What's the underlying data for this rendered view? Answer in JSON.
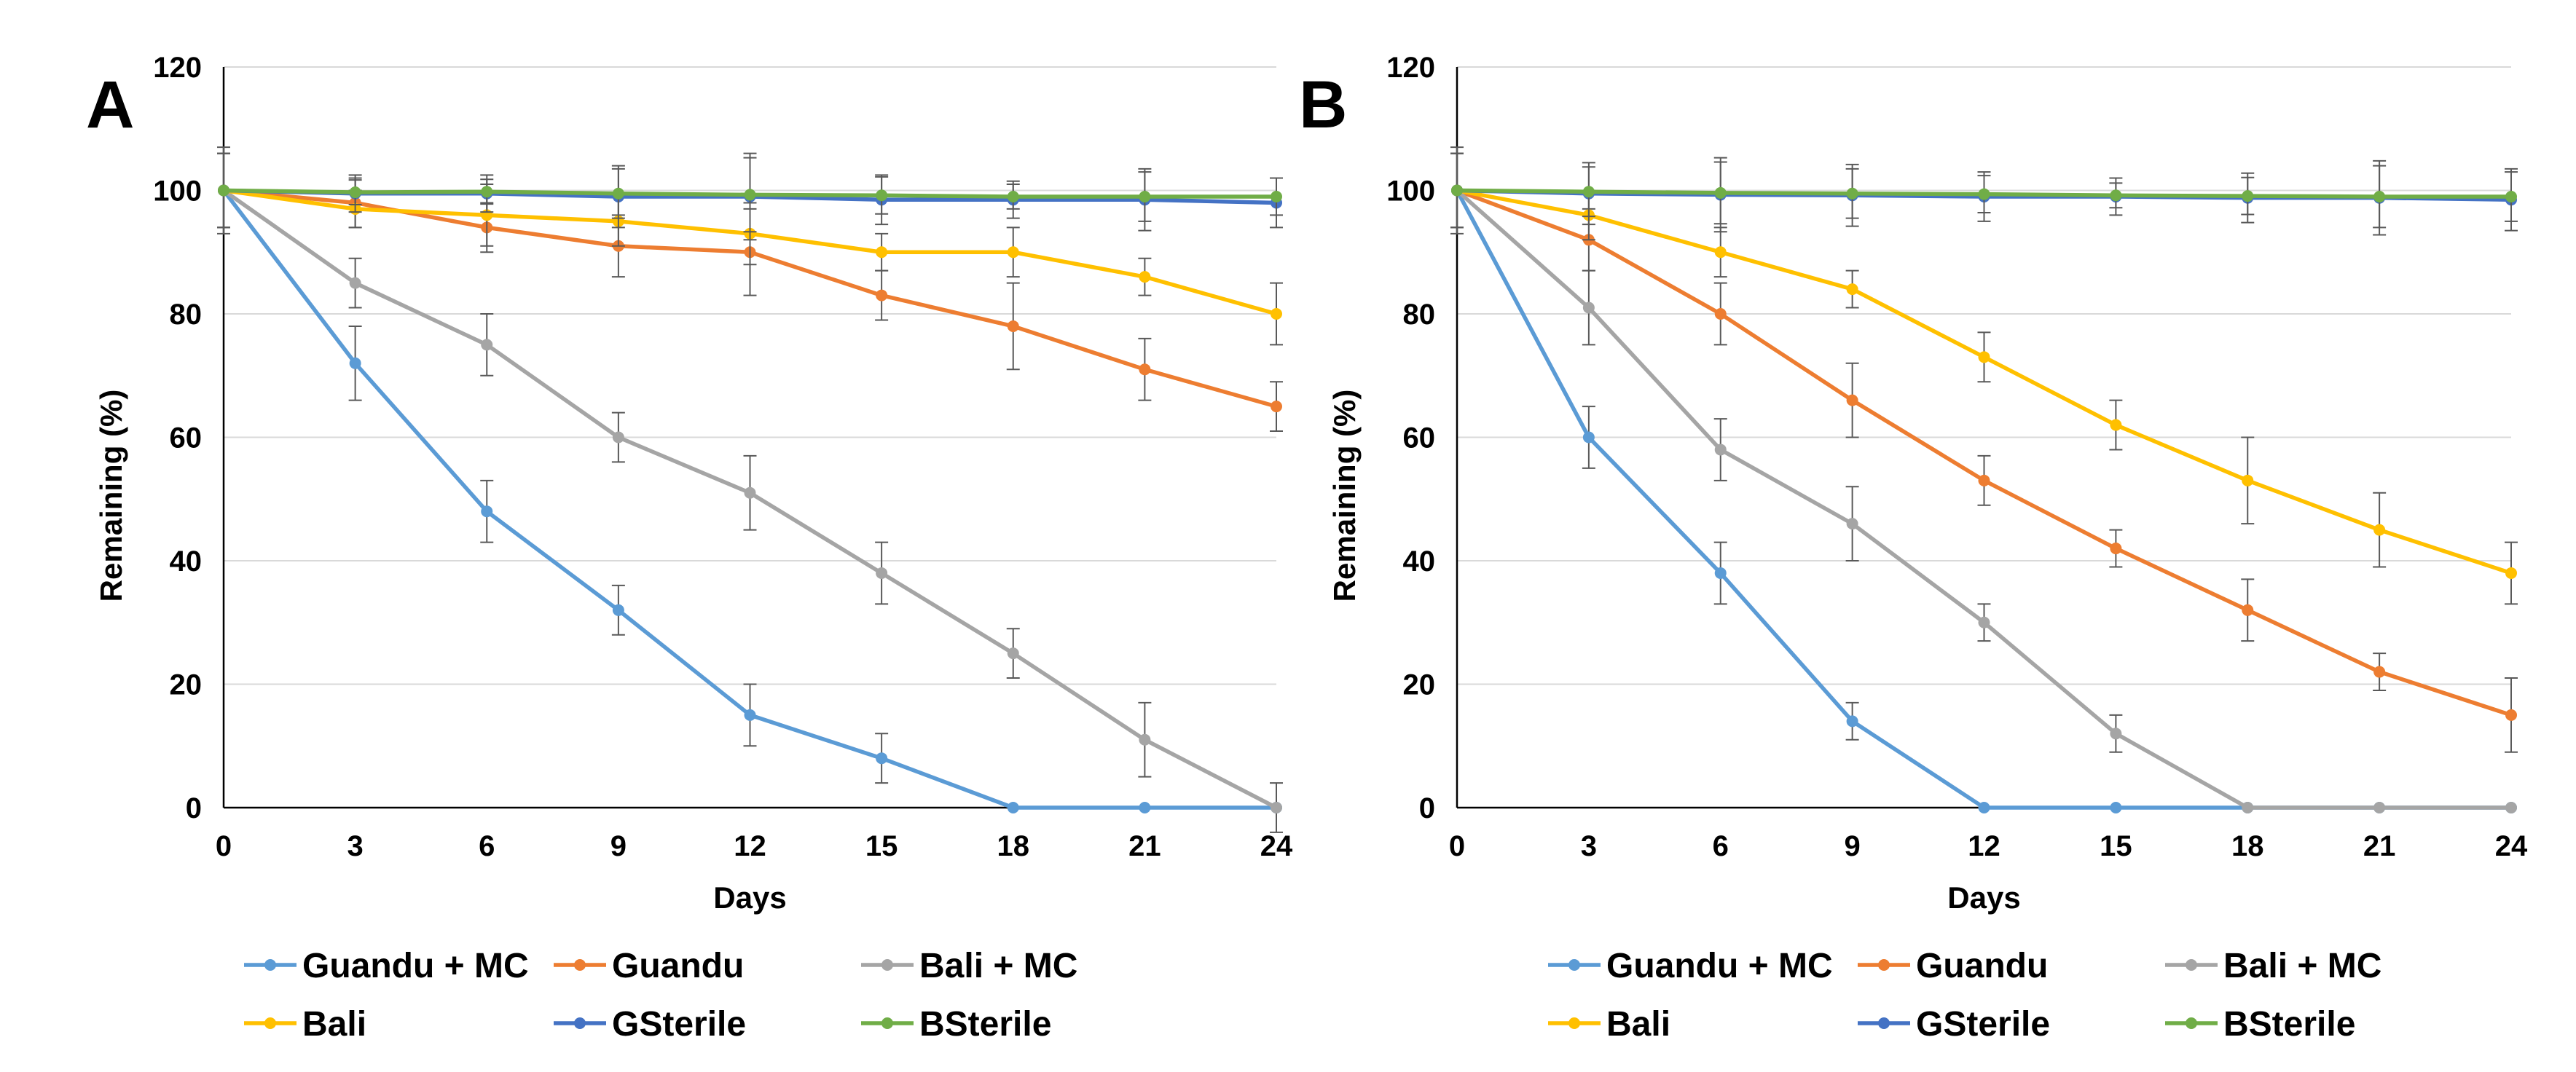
{
  "chart_data": [
    {
      "type": "line",
      "panel_label": "A",
      "xlabel": "Days",
      "ylabel": "Remaining (%)",
      "xlim": [
        0,
        24
      ],
      "ylim": [
        0,
        120
      ],
      "x_ticks": [
        0,
        3,
        6,
        9,
        12,
        15,
        18,
        21,
        24
      ],
      "y_ticks": [
        0,
        20,
        40,
        60,
        80,
        100,
        120
      ],
      "grid": "horizontal",
      "x": [
        0,
        3,
        6,
        9,
        12,
        15,
        18,
        21,
        24
      ],
      "series": [
        {
          "name": "Guandu + MC",
          "color": "#5B9BD5",
          "values": [
            100,
            72,
            48,
            32,
            15,
            8,
            0,
            0,
            0
          ],
          "errors": [
            6,
            6,
            5,
            4,
            5,
            4,
            0,
            0,
            0
          ]
        },
        {
          "name": "Guandu",
          "color": "#ED7D31",
          "values": [
            100,
            98,
            94,
            91,
            90,
            83,
            78,
            71,
            65
          ],
          "errors": [
            6,
            4,
            4,
            5,
            7,
            4,
            7,
            5,
            4
          ]
        },
        {
          "name": "Bali + MC",
          "color": "#A5A5A5",
          "values": [
            100,
            85,
            75,
            60,
            51,
            38,
            25,
            11,
            0
          ],
          "errors": [
            6,
            4,
            5,
            4,
            6,
            5,
            4,
            6,
            4
          ]
        },
        {
          "name": "Bali",
          "color": "#FFC000",
          "values": [
            100,
            97,
            96,
            95,
            93,
            90,
            90,
            86,
            80
          ],
          "errors": [
            6,
            3,
            5,
            4,
            5,
            3,
            4,
            3,
            5
          ]
        },
        {
          "name": "GSterile",
          "color": "#4472C4",
          "values": [
            100,
            99.5,
            99.5,
            99,
            99,
            98.5,
            98.5,
            98.5,
            98
          ],
          "errors": [
            7,
            3,
            3,
            5,
            7,
            4,
            3,
            5,
            4
          ]
        },
        {
          "name": "BSterile",
          "color": "#70AD47",
          "values": [
            100,
            99.7,
            99.8,
            99.5,
            99.3,
            99.2,
            99,
            99,
            99
          ],
          "errors": [
            6,
            2,
            2,
            4,
            6,
            3,
            2,
            4,
            3
          ]
        }
      ]
    },
    {
      "type": "line",
      "panel_label": "B",
      "xlabel": "Days",
      "ylabel": "Remaining (%)",
      "xlim": [
        0,
        24
      ],
      "ylim": [
        0,
        120
      ],
      "x_ticks": [
        0,
        3,
        6,
        9,
        12,
        15,
        18,
        21,
        24
      ],
      "y_ticks": [
        0,
        20,
        40,
        60,
        80,
        100,
        120
      ],
      "grid": "horizontal",
      "x": [
        0,
        3,
        6,
        9,
        12,
        15,
        18,
        21,
        24
      ],
      "series": [
        {
          "name": "Guandu + MC",
          "color": "#5B9BD5",
          "values": [
            100,
            60,
            38,
            14,
            0,
            0,
            0,
            0,
            0
          ],
          "errors": [
            6,
            5,
            5,
            3,
            0,
            0,
            0,
            0,
            0
          ]
        },
        {
          "name": "Guandu",
          "color": "#ED7D31",
          "values": [
            100,
            92,
            80,
            66,
            53,
            42,
            32,
            22,
            15
          ],
          "errors": [
            6,
            5,
            5,
            6,
            4,
            3,
            5,
            3,
            6
          ]
        },
        {
          "name": "Bali + MC",
          "color": "#A5A5A5",
          "values": [
            100,
            81,
            58,
            46,
            30,
            12,
            0,
            0,
            0
          ],
          "errors": [
            6,
            6,
            5,
            6,
            3,
            3,
            0,
            0,
            0
          ]
        },
        {
          "name": "Bali",
          "color": "#FFC000",
          "values": [
            100,
            96,
            90,
            84,
            73,
            62,
            53,
            45,
            38
          ],
          "errors": [
            6,
            4,
            4,
            3,
            4,
            4,
            7,
            6,
            5
          ]
        },
        {
          "name": "GSterile",
          "color": "#4472C4",
          "values": [
            100,
            99.5,
            99.3,
            99.2,
            99,
            99,
            98.8,
            98.8,
            98.5
          ],
          "errors": [
            7,
            5,
            6,
            5,
            4,
            3,
            4,
            6,
            5
          ]
        },
        {
          "name": "BSterile",
          "color": "#70AD47",
          "values": [
            100,
            99.8,
            99.6,
            99.5,
            99.4,
            99.2,
            99.1,
            99,
            99
          ],
          "errors": [
            6,
            4,
            5,
            4,
            3,
            2,
            3,
            5,
            4
          ]
        }
      ]
    }
  ]
}
